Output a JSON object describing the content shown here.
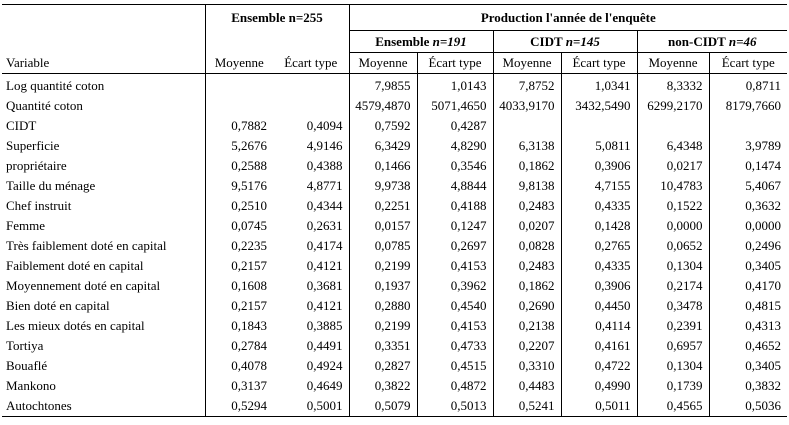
{
  "header": {
    "ensemble_top": "Ensemble n=255",
    "production": "Production l'année de l'enquête",
    "variable": "Variable",
    "sub": [
      {
        "label": "Ensemble ",
        "n": "n=191"
      },
      {
        "label": "CIDT ",
        "n": "n=145"
      },
      {
        "label": "non-CIDT ",
        "n": "n=46"
      }
    ],
    "cols": [
      "Moyenne",
      "Écart type",
      "Moyenne",
      "Écart type",
      "Moyenne",
      "Écart type",
      "Moyenne",
      "Écart type"
    ]
  },
  "rows": [
    {
      "label": "Log quantité coton",
      "v": [
        "",
        "",
        "7,9855",
        "1,0143",
        "7,8752",
        "1,0341",
        "8,3332",
        "0,8711"
      ]
    },
    {
      "label": "Quantité coton",
      "v": [
        "",
        "",
        "4579,4870",
        "5071,4650",
        "4033,9170",
        "3432,5490",
        "6299,2170",
        "8179,7660"
      ]
    },
    {
      "label": "CIDT",
      "v": [
        "0,7882",
        "0,4094",
        "0,7592",
        "0,4287",
        "",
        "",
        "",
        ""
      ]
    },
    {
      "label": "Superficie",
      "v": [
        "5,2676",
        "4,9146",
        "6,3429",
        "4,8290",
        "6,3138",
        "5,0811",
        "6,4348",
        "3,9789"
      ]
    },
    {
      "label": "propriétaire",
      "v": [
        "0,2588",
        "0,4388",
        "0,1466",
        "0,3546",
        "0,1862",
        "0,3906",
        "0,0217",
        "0,1474"
      ]
    },
    {
      "label": "Taille du ménage",
      "v": [
        "9,5176",
        "4,8771",
        "9,9738",
        "4,8844",
        "9,8138",
        "4,7155",
        "10,4783",
        "5,4067"
      ]
    },
    {
      "label": "Chef instruit",
      "v": [
        "0,2510",
        "0,4344",
        "0,2251",
        "0,4188",
        "0,2483",
        "0,4335",
        "0,1522",
        "0,3632"
      ]
    },
    {
      "label": "Femme",
      "v": [
        "0,0745",
        "0,2631",
        "0,0157",
        "0,1247",
        "0,0207",
        "0,1428",
        "0,0000",
        "0,0000"
      ]
    },
    {
      "label": "Très faiblement doté en capital",
      "v": [
        "0,2235",
        "0,4174",
        "0,0785",
        "0,2697",
        "0,0828",
        "0,2765",
        "0,0652",
        "0,2496"
      ]
    },
    {
      "label": "Faiblement doté en capital",
      "v": [
        "0,2157",
        "0,4121",
        "0,2199",
        "0,4153",
        "0,2483",
        "0,4335",
        "0,1304",
        "0,3405"
      ]
    },
    {
      "label": "Moyennement doté en capital",
      "v": [
        "0,1608",
        "0,3681",
        "0,1937",
        "0,3962",
        "0,1862",
        "0,3906",
        "0,2174",
        "0,4170"
      ]
    },
    {
      "label": "Bien doté en capital",
      "v": [
        "0,2157",
        "0,4121",
        "0,2880",
        "0,4540",
        "0,2690",
        "0,4450",
        "0,3478",
        "0,4815"
      ]
    },
    {
      "label": "Les mieux dotés en capital",
      "v": [
        "0,1843",
        "0,3885",
        "0,2199",
        "0,4153",
        "0,2138",
        "0,4114",
        "0,2391",
        "0,4313"
      ]
    },
    {
      "label": "Tortiya",
      "v": [
        "0,2784",
        "0,4491",
        "0,3351",
        "0,4733",
        "0,2207",
        "0,4161",
        "0,6957",
        "0,4652"
      ]
    },
    {
      "label": "Bouaflé",
      "v": [
        "0,4078",
        "0,4924",
        "0,2827",
        "0,4515",
        "0,3310",
        "0,4722",
        "0,1304",
        "0,3405"
      ]
    },
    {
      "label": "Mankono",
      "v": [
        "0,3137",
        "0,4649",
        "0,3822",
        "0,4872",
        "0,4483",
        "0,4990",
        "0,1739",
        "0,3832"
      ]
    },
    {
      "label": "Autochtones",
      "v": [
        "0,5294",
        "0,5001",
        "0,5079",
        "0,5013",
        "0,5241",
        "0,5011",
        "0,4565",
        "0,5036"
      ]
    }
  ]
}
